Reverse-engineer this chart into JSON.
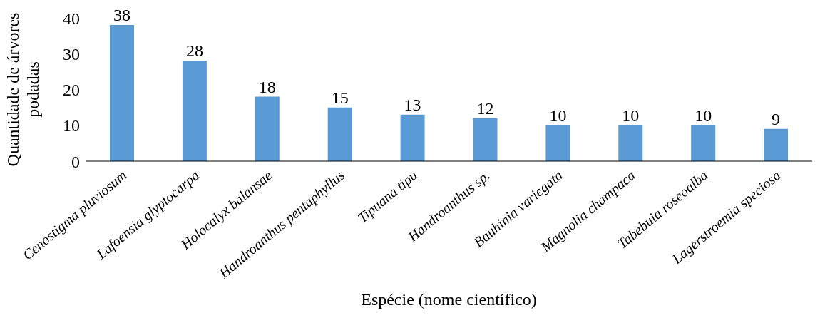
{
  "chart_data": {
    "type": "bar",
    "xlabel": "Espécie (nome científico)",
    "ylabel": "Quantidade de árvores podadas",
    "categories": [
      "Cenostigma pluviosum",
      "Lafoensia glyptocarpa",
      "Holocalyx balansae",
      "Handroanthus pentaphyllus",
      "Tipuana tipu",
      "Handroanthus sp.",
      "Bauhinia variegata",
      "Magnolia champaca",
      "Tabebuia roseoalba",
      "Lagerstroemia speciosa"
    ],
    "values": [
      38,
      28,
      18,
      15,
      13,
      12,
      10,
      10,
      10,
      9
    ],
    "color": "#5b9bd5",
    "ylim": [
      0,
      40
    ],
    "yticks": [
      0,
      10,
      20,
      30,
      40
    ],
    "grid": false,
    "legend": false,
    "data_labels": true
  }
}
